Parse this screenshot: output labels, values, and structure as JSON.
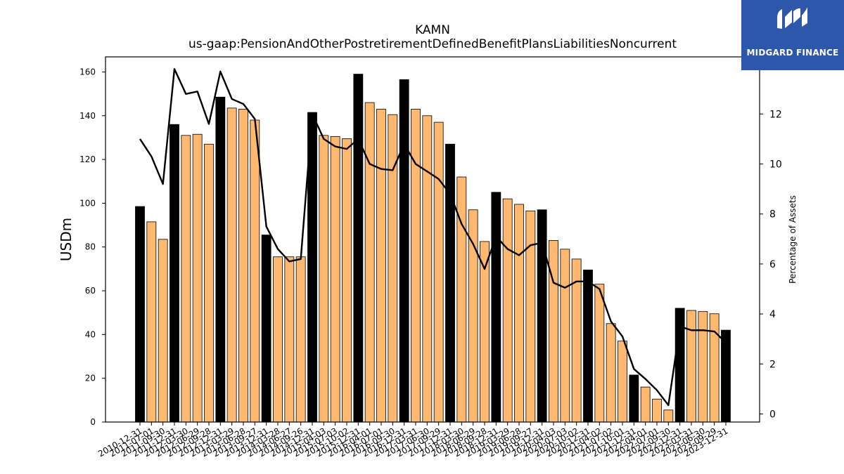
{
  "logo": {
    "text": "MIDGARD FINANCE",
    "icon": "mi-monogram-icon",
    "bg": "#2d57a8"
  },
  "chart_data": {
    "type": "bar",
    "title": "KAMN",
    "subtitle": "us-gaap:PensionAndOtherPostretirementDefinedBenefitPlansLiabilitiesNoncurrent",
    "ylabel": "USDm",
    "y2label": "Percentage of Assets",
    "ylim": [
      0,
      167
    ],
    "y2lim": [
      -0.3,
      14.3
    ],
    "yticks": [
      0,
      20,
      40,
      60,
      80,
      100,
      120,
      140,
      160
    ],
    "y2ticks": [
      0,
      2,
      4,
      6,
      8,
      10,
      12
    ],
    "grid": false,
    "colors": {
      "annual": "#000000",
      "quarter": "#ffb870",
      "line": "#000000"
    },
    "categories": [
      "2010-12-31",
      "2011-07-01",
      "2011-09-30",
      "2011-12-31",
      "2012-03-30",
      "2012-06-29",
      "2012-09-28",
      "2012-12-31",
      "2013-03-29",
      "2013-06-28",
      "2013-09-27",
      "2013-12-31",
      "2014-03-28",
      "2014-06-27",
      "2014-09-26",
      "2014-12-31",
      "2015-04-03",
      "2015-07-03",
      "2015-10-02",
      "2015-12-31",
      "2016-04-01",
      "2016-07-01",
      "2016-09-30",
      "2016-12-31",
      "2017-03-31",
      "2017-06-30",
      "2017-09-29",
      "2017-12-31",
      "2018-03-30",
      "2018-06-29",
      "2018-09-28",
      "2018-12-31",
      "2019-03-29",
      "2019-06-28",
      "2019-09-27",
      "2019-12-31",
      "2020-04-03",
      "2020-07-03",
      "2020-10-02",
      "2020-12-31",
      "2021-04-02",
      "2021-07-02",
      "2021-10-01",
      "2021-12-31",
      "2022-04-01",
      "2022-07-01",
      "2022-09-30",
      "2022-12-31",
      "2023-03-31",
      "2023-06-30",
      "2023-09-29",
      "2023-12-31"
    ],
    "series": [
      {
        "name": "Value",
        "values": [
          98.5,
          91.5,
          83.5,
          136,
          131,
          131.5,
          127,
          148.5,
          143.5,
          143,
          138,
          85.5,
          75.5,
          75.5,
          75.5,
          141.5,
          131,
          130.5,
          129.5,
          159,
          146,
          143,
          140.5,
          156.5,
          143,
          140,
          137,
          127,
          112,
          97,
          82.5,
          105,
          102,
          99.5,
          96.5,
          97,
          83,
          79,
          74.5,
          69.5,
          63,
          45,
          37,
          21.5,
          16,
          10.5,
          5.5,
          52,
          51,
          50.5,
          49.5,
          42
        ],
        "annual": [
          true,
          false,
          false,
          true,
          false,
          false,
          false,
          true,
          false,
          false,
          false,
          true,
          false,
          false,
          false,
          true,
          false,
          false,
          false,
          true,
          false,
          false,
          false,
          true,
          false,
          false,
          false,
          true,
          false,
          false,
          false,
          true,
          false,
          false,
          false,
          true,
          false,
          false,
          false,
          true,
          false,
          false,
          false,
          true,
          false,
          false,
          false,
          true,
          false,
          false,
          false,
          true
        ]
      },
      {
        "name": "Percentage of Assets",
        "axis": "right",
        "values": [
          11.0,
          10.3,
          9.2,
          13.8,
          12.8,
          12.9,
          11.6,
          13.7,
          12.6,
          12.4,
          11.8,
          7.5,
          6.6,
          6.1,
          6.2,
          12.0,
          11.0,
          10.7,
          10.6,
          11.0,
          10.0,
          9.8,
          9.75,
          10.8,
          10.0,
          9.7,
          9.4,
          8.8,
          7.6,
          6.8,
          5.8,
          7.1,
          6.6,
          6.35,
          6.75,
          6.85,
          5.25,
          5.05,
          5.3,
          5.3,
          5.0,
          3.7,
          3.1,
          1.8,
          1.4,
          0.95,
          0.35,
          3.5,
          3.35,
          3.35,
          3.3,
          2.85
        ]
      }
    ]
  }
}
